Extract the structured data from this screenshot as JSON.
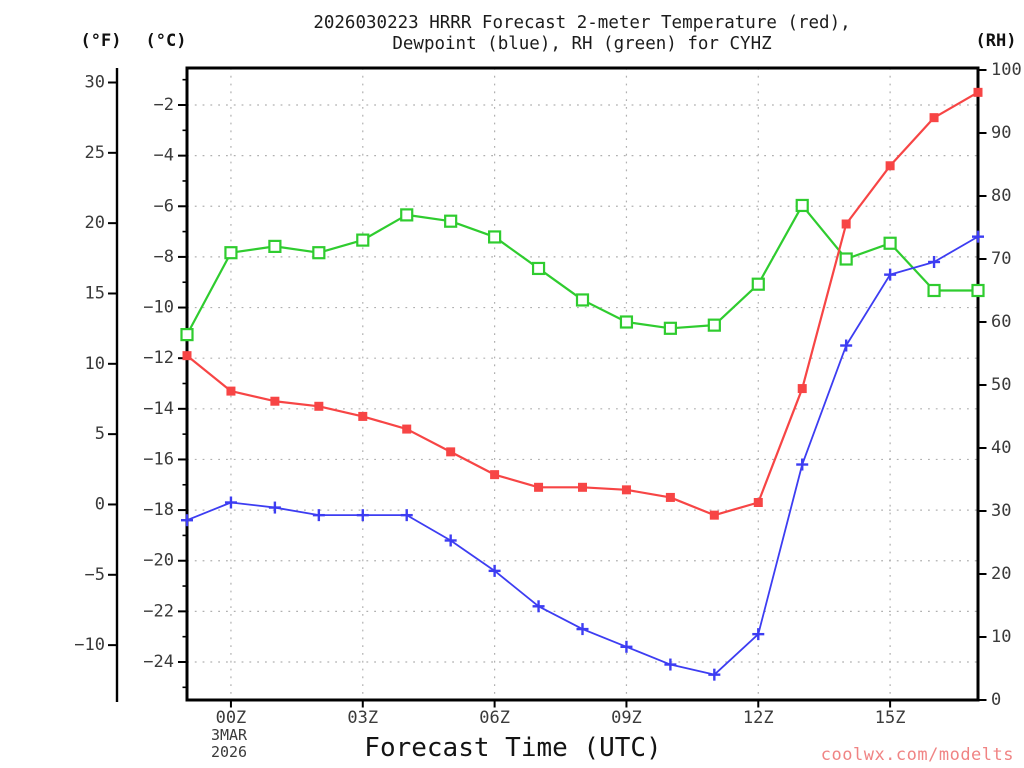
{
  "chart_data": {
    "type": "line",
    "title_line1": "2026030223 HRRR Forecast 2-meter Temperature (red),",
    "title_line2": "Dewpoint (blue), RH (green) for CYHZ",
    "xlabel": "Forecast Time (UTC)",
    "date_line1": "3MAR",
    "date_line2": "2026",
    "watermark": "coolwx.com/modelts",
    "x_hours": [
      "23Z",
      "00Z",
      "01Z",
      "02Z",
      "03Z",
      "04Z",
      "05Z",
      "06Z",
      "07Z",
      "08Z",
      "09Z",
      "10Z",
      "11Z",
      "12Z",
      "13Z",
      "14Z",
      "15Z",
      "16Z",
      "17Z"
    ],
    "x_ticks": [
      {
        "label": "00Z",
        "index": 1
      },
      {
        "label": "03Z",
        "index": 4
      },
      {
        "label": "06Z",
        "index": 7
      },
      {
        "label": "09Z",
        "index": 10
      },
      {
        "label": "12Z",
        "index": 13
      },
      {
        "label": "15Z",
        "index": 16
      }
    ],
    "axes": {
      "f": {
        "unit": "(°F)",
        "ticks": [
          30,
          25,
          20,
          15,
          10,
          5,
          0,
          -5,
          -10
        ]
      },
      "c": {
        "unit": "(°C)",
        "ticks": [
          -2,
          -4,
          -6,
          -8,
          -10,
          -12,
          -14,
          -16,
          -18,
          -20,
          -22,
          -24
        ],
        "visible_range": [
          -25.5,
          -0.6
        ]
      },
      "rh": {
        "unit": "(RH)",
        "ticks": [
          100,
          90,
          80,
          70,
          60,
          50,
          40,
          30,
          20,
          10,
          0
        ],
        "range": [
          0,
          100
        ]
      }
    },
    "series": [
      {
        "name": "rh",
        "label": "RH (green)",
        "axis": "rh",
        "color": "#2fcc2f",
        "marker": "open-square",
        "values": [
          58,
          71,
          72,
          71,
          73,
          77,
          76,
          73.5,
          68.5,
          63.5,
          60,
          59,
          59.5,
          66,
          78.5,
          70,
          72.5,
          65,
          65
        ]
      },
      {
        "name": "temperature",
        "label": "2-meter Temperature (red)",
        "axis": "c",
        "color": "#f74545",
        "marker": "filled-square",
        "values": [
          -11.9,
          -13.3,
          -13.7,
          -13.9,
          -14.3,
          -14.8,
          -15.7,
          -16.6,
          -17.1,
          -17.1,
          -17.2,
          -17.5,
          -18.2,
          -17.7,
          -13.2,
          -6.7,
          -4.4,
          -2.5,
          -1.5
        ]
      },
      {
        "name": "dewpoint",
        "label": "Dewpoint (blue)",
        "axis": "c",
        "color": "#3d3df2",
        "marker": "plus",
        "values": [
          -18.4,
          -17.7,
          -17.9,
          -18.2,
          -18.2,
          -18.2,
          -19.2,
          -20.4,
          -21.8,
          -22.7,
          -23.4,
          -24.1,
          -24.5,
          -22.9,
          -16.2,
          -11.5,
          -8.7,
          -8.2,
          -7.2
        ]
      }
    ]
  }
}
